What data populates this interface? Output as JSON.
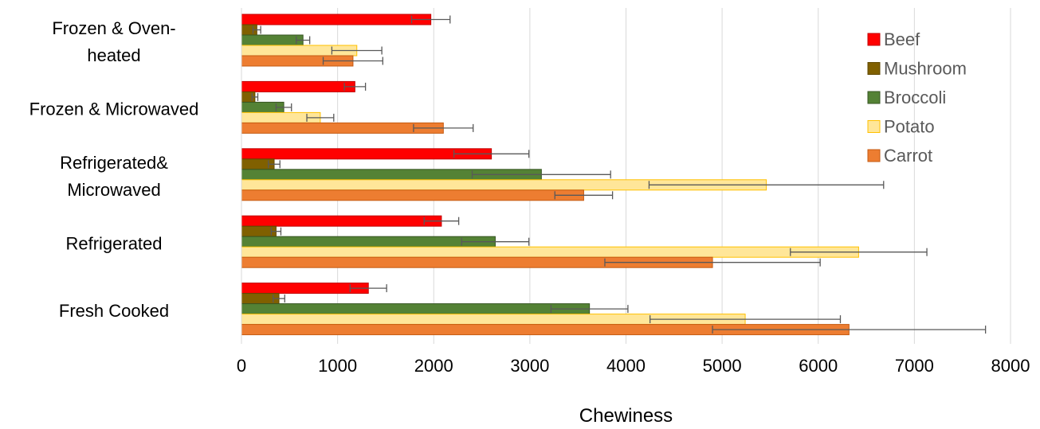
{
  "chart_data": {
    "type": "bar",
    "orientation": "horizontal",
    "title": "",
    "xlabel": "Chewiness",
    "ylabel": "",
    "xlim": [
      0,
      8000
    ],
    "x_ticks": [
      0,
      1000,
      2000,
      3000,
      4000,
      5000,
      6000,
      7000,
      8000
    ],
    "grid": "vertical",
    "legend_position": "top-right",
    "categories": [
      [
        "Frozen & Oven-",
        "heated"
      ],
      [
        "Frozen & Microwaved"
      ],
      [
        "Refrigerated&",
        "Microwaved"
      ],
      [
        "Refrigerated"
      ],
      [
        "Fresh Cooked"
      ]
    ],
    "series": [
      {
        "name": "Beef",
        "color": "#FF0000",
        "border": "#C00000",
        "values": [
          1970,
          1180,
          2600,
          2080,
          1320
        ],
        "errors": [
          200,
          110,
          390,
          180,
          190
        ]
      },
      {
        "name": "Mushroom",
        "color": "#806000",
        "border": "#604800",
        "values": [
          160,
          140,
          340,
          360,
          390
        ],
        "errors": [
          40,
          30,
          60,
          50,
          60
        ]
      },
      {
        "name": "Broccoli",
        "color": "#548235",
        "border": "#375623",
        "values": [
          640,
          440,
          3120,
          2640,
          3620
        ],
        "errors": [
          70,
          80,
          720,
          350,
          400
        ]
      },
      {
        "name": "Potato",
        "color": "#FFE699",
        "border": "#FFC000",
        "values": [
          1200,
          820,
          5460,
          6420,
          5240
        ],
        "errors": [
          260,
          140,
          1220,
          710,
          990
        ]
      },
      {
        "name": "Carrot",
        "color": "#ED7D31",
        "border": "#C55A11",
        "values": [
          1160,
          2100,
          3560,
          4900,
          6320
        ],
        "errors": [
          310,
          310,
          300,
          1120,
          1420
        ]
      }
    ]
  }
}
